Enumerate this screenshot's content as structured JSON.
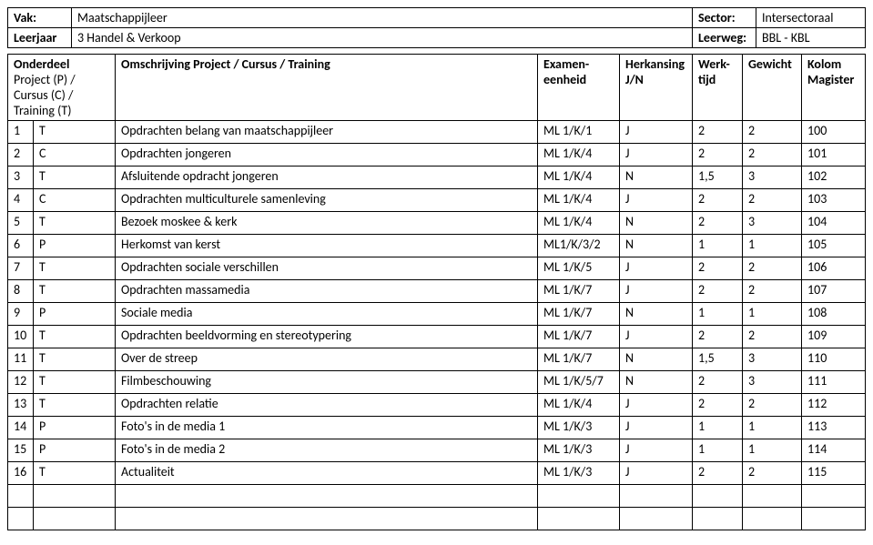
{
  "header": {
    "vak_label": "Vak:",
    "vak_value": "Maatschappijleer",
    "sector_label": "Sector:",
    "sector_value": "Intersectoraal",
    "leerjaar_label": "Leerjaar",
    "leerjaar_value": "3 Handel & Verkoop",
    "leerweg_label": "Leerweg:",
    "leerweg_value": "BBL - KBL"
  },
  "columns": {
    "onderdeel": "Onderdeel",
    "project": "Project (P) / Cursus (C) / Training (T)",
    "omschrijving": "Omschrijving Project / Cursus / Training",
    "examen": "Examen-eenheid",
    "herkansing": "Herkansing J/N",
    "werktijd": "Werk-tijd",
    "gewicht": "Gewicht",
    "kolom": "Kolom Magister"
  },
  "rows": [
    {
      "n": "1",
      "t": "T",
      "desc": "Opdrachten belang van maatschappijleer",
      "exam": "ML 1/K/1",
      "herk": "J",
      "werk": "2",
      "gew": "2",
      "kolom": "100"
    },
    {
      "n": "2",
      "t": "C",
      "desc": "Opdrachten jongeren",
      "exam": "ML 1/K/4",
      "herk": "J",
      "werk": "2",
      "gew": "2",
      "kolom": "101"
    },
    {
      "n": "3",
      "t": "T",
      "desc": "Afsluitende opdracht jongeren",
      "exam": "ML 1/K/4",
      "herk": "N",
      "werk": "1,5",
      "gew": "3",
      "kolom": "102"
    },
    {
      "n": "4",
      "t": "C",
      "desc": "Opdrachten multiculturele samenleving",
      "exam": "ML 1/K/4",
      "herk": "J",
      "werk": "2",
      "gew": "2",
      "kolom": "103"
    },
    {
      "n": "5",
      "t": "T",
      "desc": "Bezoek moskee & kerk",
      "exam": "ML 1/K/4",
      "herk": "N",
      "werk": "2",
      "gew": "3",
      "kolom": "104"
    },
    {
      "n": "6",
      "t": "P",
      "desc": "Herkomst van kerst",
      "exam": "ML1/K/3/2",
      "herk": "N",
      "werk": "1",
      "gew": "1",
      "kolom": "105"
    },
    {
      "n": "7",
      "t": "T",
      "desc": "Opdrachten sociale verschillen",
      "exam": "ML 1/K/5",
      "herk": "J",
      "werk": "2",
      "gew": "2",
      "kolom": "106"
    },
    {
      "n": "8",
      "t": "T",
      "desc": "Opdrachten massamedia",
      "exam": "ML 1/K/7",
      "herk": "J",
      "werk": "2",
      "gew": "2",
      "kolom": "107"
    },
    {
      "n": "9",
      "t": "P",
      "desc": "Sociale media",
      "exam": "ML 1/K/7",
      "herk": "N",
      "werk": "1",
      "gew": "1",
      "kolom": "108"
    },
    {
      "n": "10",
      "t": "T",
      "desc": "Opdrachten beeldvorming en stereotypering",
      "exam": "ML 1/K/7",
      "herk": "J",
      "werk": "2",
      "gew": "2",
      "kolom": "109"
    },
    {
      "n": "11",
      "t": "T",
      "desc": "Over de streep",
      "exam": "ML 1/K/7",
      "herk": "N",
      "werk": "1,5",
      "gew": "3",
      "kolom": "110"
    },
    {
      "n": "12",
      "t": "T",
      "desc": "Filmbeschouwing",
      "exam": "ML 1/K/5/7",
      "herk": "N",
      "werk": "2",
      "gew": "3",
      "kolom": "111"
    },
    {
      "n": "13",
      "t": "T",
      "desc": "Opdrachten relatie",
      "exam": "ML 1/K/4",
      "herk": "J",
      "werk": "2",
      "gew": "2",
      "kolom": "112"
    },
    {
      "n": "14",
      "t": "P",
      "desc": "Foto's in de media 1",
      "exam": "ML 1/K/3",
      "herk": "J",
      "werk": "1",
      "gew": "1",
      "kolom": "113"
    },
    {
      "n": "15",
      "t": "P",
      "desc": "Foto's in de media 2",
      "exam": "ML 1/K/3",
      "herk": "J",
      "werk": "1",
      "gew": "1",
      "kolom": "114"
    },
    {
      "n": "16",
      "t": "T",
      "desc": "Actualiteit",
      "exam": "ML 1/K/3",
      "herk": "J",
      "werk": "2",
      "gew": "2",
      "kolom": "115"
    },
    {
      "n": "",
      "t": "",
      "desc": "",
      "exam": "",
      "herk": "",
      "werk": "",
      "gew": "",
      "kolom": ""
    },
    {
      "n": "",
      "t": "",
      "desc": "",
      "exam": "",
      "herk": "",
      "werk": "",
      "gew": "",
      "kolom": ""
    }
  ]
}
